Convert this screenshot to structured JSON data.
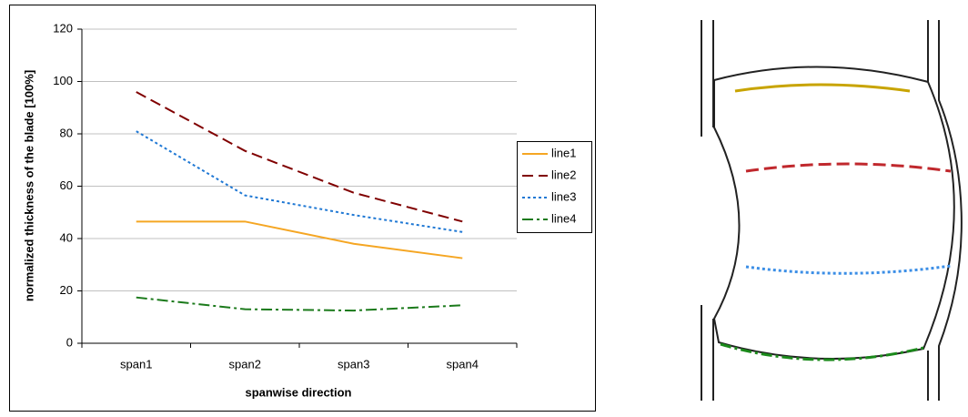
{
  "chart_data": {
    "type": "line",
    "ylabel": "normalized thickness of the blade [100%]",
    "xlabel": "spanwise direction",
    "categories": [
      "span1",
      "span2",
      "span3",
      "span4"
    ],
    "series": [
      {
        "name": "line1",
        "color": "#f5a623",
        "dash": "solid",
        "values": [
          46.5,
          46.5,
          38,
          32.5
        ]
      },
      {
        "name": "line2",
        "color": "#800000",
        "dash": "dashed",
        "values": [
          96,
          73.5,
          57.5,
          46.5
        ]
      },
      {
        "name": "line3",
        "color": "#1f78d4",
        "dash": "dotted",
        "values": [
          81,
          56.5,
          49,
          42.5
        ]
      },
      {
        "name": "line4",
        "color": "#1b7a1b",
        "dash": "dashdot",
        "values": [
          17.5,
          13,
          12.5,
          14.5
        ]
      }
    ],
    "ylim": [
      0,
      120
    ],
    "yticks": [
      0,
      20,
      40,
      60,
      80,
      100,
      120
    ],
    "grid": true,
    "legend": "right"
  }
}
